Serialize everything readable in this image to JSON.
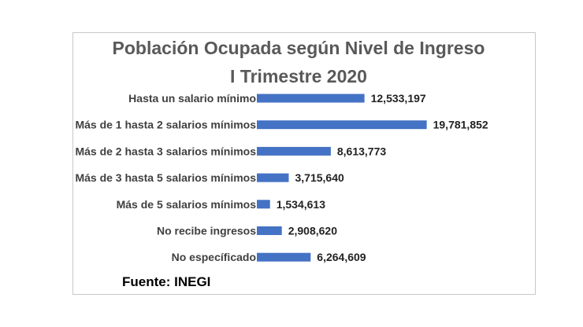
{
  "chart_data": {
    "type": "bar",
    "orientation": "horizontal",
    "title": "Población Ocupada según Nivel de Ingreso",
    "subtitle": "I Trimestre 2020",
    "categories": [
      "Hasta un salario mínimo",
      "Más de 1 hasta 2 salarios mínimos",
      "Más de 2 hasta 3 salarios mínimos",
      "Más de 3 hasta 5 salarios mínimos",
      "Más de 5 salarios mínimos",
      "No recibe ingresos",
      "No específicado"
    ],
    "values": [
      12533197,
      19781852,
      8613773,
      3715640,
      1534613,
      2908620,
      6264609
    ],
    "value_labels": [
      "12,533,197",
      "19,781,852",
      "8,613,773",
      "3,715,640",
      "1,534,613",
      "2,908,620",
      "6,264,609"
    ],
    "xlim": [
      0,
      20000000
    ],
    "bar_color": "#4472c4",
    "grid": false,
    "legend": "none"
  },
  "source_note": "Fuente: INEGI"
}
